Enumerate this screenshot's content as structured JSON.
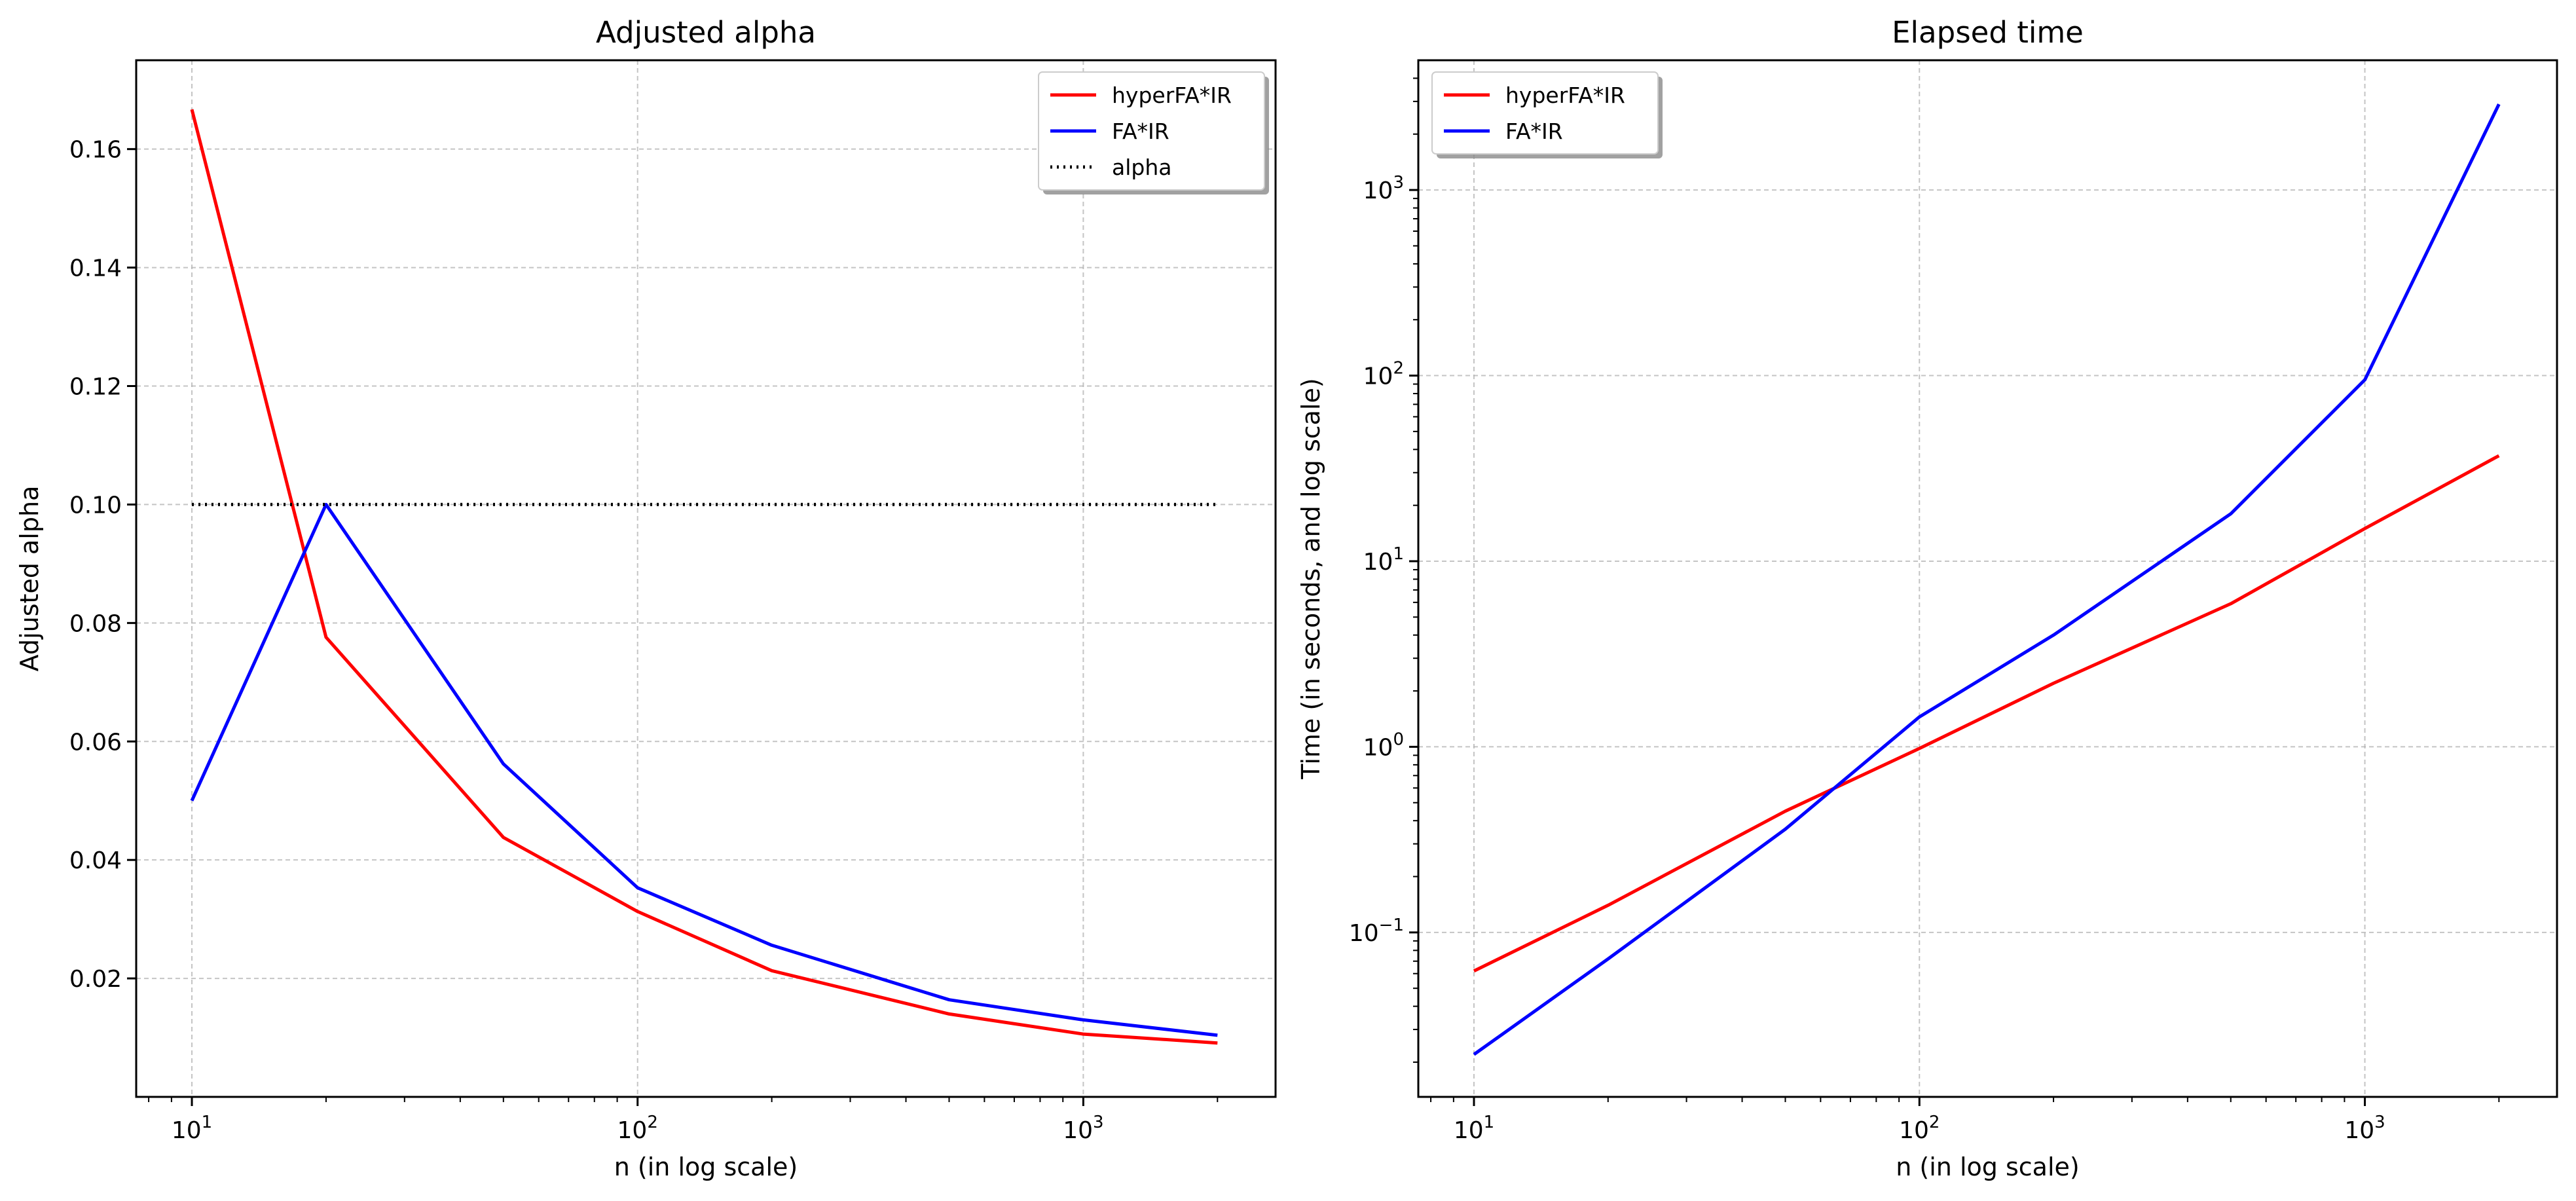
{
  "chart_data": [
    {
      "type": "line",
      "title": "Adjusted alpha",
      "xlabel": "n (in log scale)",
      "ylabel": "Adjusted alpha",
      "xscale": "log",
      "xlim": [
        7.5,
        2700
      ],
      "ylim": [
        0.0,
        0.175
      ],
      "grid": true,
      "legend_location": "top-right",
      "x_ticks": [
        10,
        100,
        1000
      ],
      "x_tick_labels": [
        {
          "base": "10",
          "exp": "1"
        },
        {
          "base": "10",
          "exp": "2"
        },
        {
          "base": "10",
          "exp": "3"
        }
      ],
      "y_ticks": [
        0.02,
        0.04,
        0.06,
        0.08,
        0.1,
        0.12,
        0.14,
        0.16
      ],
      "y_tick_labels": [
        "0.02",
        "0.04",
        "0.06",
        "0.08",
        "0.10",
        "0.12",
        "0.14",
        "0.16"
      ],
      "series": [
        {
          "name": "hyperFA*IR",
          "color": "#ff0000",
          "style": "solid",
          "x": [
            10,
            20,
            50,
            100,
            200,
            500,
            1000,
            2000
          ],
          "y": [
            0.1667,
            0.0776,
            0.0438,
            0.0313,
            0.0213,
            0.014,
            0.0106,
            0.0091
          ]
        },
        {
          "name": "FA*IR",
          "color": "#0000ff",
          "style": "solid",
          "x": [
            10,
            20,
            50,
            100,
            200,
            500,
            1000,
            2000
          ],
          "y": [
            0.05,
            0.1,
            0.0562,
            0.0353,
            0.0256,
            0.0164,
            0.013,
            0.0104
          ]
        },
        {
          "name": "alpha",
          "color": "#000000",
          "style": "dotted",
          "x": [
            10,
            2000
          ],
          "y": [
            0.1,
            0.1
          ]
        }
      ]
    },
    {
      "type": "line",
      "title": "Elapsed time",
      "xlabel": "n (in log scale)",
      "ylabel": "Time (in seconds, and log scale)",
      "xscale": "log",
      "yscale": "log",
      "xlim": [
        7.5,
        2700
      ],
      "ylim": [
        0.013,
        5000
      ],
      "grid": true,
      "legend_location": "top-left",
      "x_ticks": [
        10,
        100,
        1000
      ],
      "x_tick_labels": [
        {
          "base": "10",
          "exp": "1"
        },
        {
          "base": "10",
          "exp": "2"
        },
        {
          "base": "10",
          "exp": "3"
        }
      ],
      "y_ticks": [
        0.1,
        1,
        10,
        100,
        1000
      ],
      "y_tick_labels": [
        {
          "base": "10",
          "exp": "−1"
        },
        {
          "base": "10",
          "exp": "0"
        },
        {
          "base": "10",
          "exp": "1"
        },
        {
          "base": "10",
          "exp": "2"
        },
        {
          "base": "10",
          "exp": "3"
        }
      ],
      "series": [
        {
          "name": "hyperFA*IR",
          "color": "#ff0000",
          "style": "solid",
          "x": [
            10,
            20,
            50,
            100,
            200,
            500,
            1000,
            2000
          ],
          "y": [
            0.062,
            0.14,
            0.45,
            0.98,
            2.2,
            5.9,
            15,
            37
          ]
        },
        {
          "name": "FA*IR",
          "color": "#0000ff",
          "style": "solid",
          "x": [
            10,
            20,
            50,
            100,
            200,
            500,
            1000,
            2000
          ],
          "y": [
            0.022,
            0.072,
            0.36,
            1.45,
            4.0,
            18,
            95,
            2900
          ]
        }
      ]
    }
  ]
}
